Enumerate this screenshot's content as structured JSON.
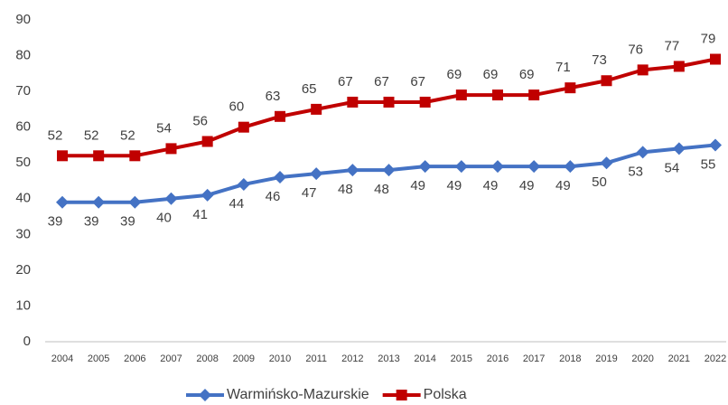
{
  "chart_data": {
    "type": "line",
    "categories": [
      "2004",
      "2005",
      "2006",
      "2007",
      "2008",
      "2009",
      "2010",
      "2011",
      "2012",
      "2013",
      "2014",
      "2015",
      "2016",
      "2017",
      "2018",
      "2019",
      "2020",
      "2021",
      "2022"
    ],
    "series": [
      {
        "name": "Warmińsko-Mazurskie",
        "color": "#4472c4",
        "marker": "diamond",
        "label_position": "below",
        "values": [
          39,
          39,
          39,
          40,
          41,
          44,
          46,
          47,
          48,
          48,
          49,
          49,
          49,
          49,
          49,
          50,
          53,
          54,
          55
        ]
      },
      {
        "name": "Polska",
        "color": "#c00000",
        "marker": "square",
        "label_position": "above",
        "values": [
          52,
          52,
          52,
          54,
          56,
          60,
          63,
          65,
          67,
          67,
          67,
          69,
          69,
          69,
          71,
          73,
          76,
          77,
          79
        ]
      }
    ],
    "ylim": [
      0,
      90
    ],
    "yticks": [
      0,
      10,
      20,
      30,
      40,
      50,
      60,
      70,
      80,
      90
    ],
    "grid": false,
    "legend": "bottom"
  }
}
